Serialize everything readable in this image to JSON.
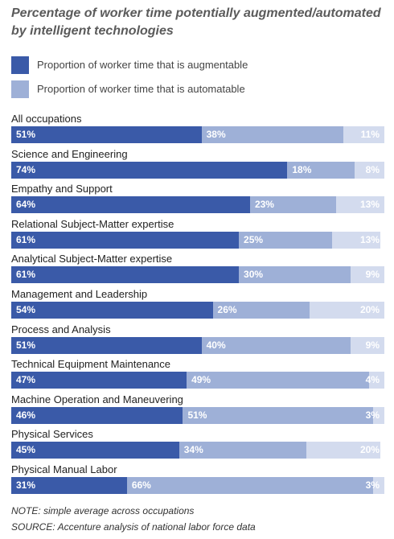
{
  "chart_data": {
    "type": "bar",
    "stacked": true,
    "orientation": "horizontal",
    "title": "Percentage of worker time potentially augmented/automated by intelligent technologies",
    "categories": [
      "All occupations",
      "Science and Engineering",
      "Empathy and Support",
      "Relational Subject-Matter expertise",
      "Analytical Subject-Matter expertise",
      "Management and Leadership",
      "Process and Analysis",
      "Technical Equipment Maintenance",
      "Machine Operation and Maneuvering",
      "Physical Services",
      "Physical Manual Labor"
    ],
    "series": [
      {
        "name": "Proportion of worker time that is augmentable",
        "color": "#3a5aa8",
        "text_color": "#ffffff",
        "values": [
          51,
          74,
          64,
          61,
          61,
          54,
          51,
          47,
          46,
          45,
          31
        ]
      },
      {
        "name": "Proportion of worker time that is automatable",
        "color": "#9eb0d7",
        "text_color": "#ffffff",
        "values": [
          38,
          18,
          23,
          25,
          30,
          26,
          40,
          49,
          51,
          34,
          66
        ]
      },
      {
        "name": "",
        "color": "#d3dbee",
        "text_color": "#ffffff",
        "values": [
          11,
          8,
          13,
          13,
          9,
          20,
          9,
          4,
          3,
          20,
          3
        ]
      }
    ],
    "value_suffix": "%",
    "xlim": [
      0,
      100
    ],
    "legend": "top-left",
    "grid": false
  },
  "legend": [
    {
      "label": "Proportion of worker time that is augmentable",
      "color": "#3a5aa8"
    },
    {
      "label": "Proportion of worker time that is automatable",
      "color": "#9eb0d7"
    }
  ],
  "notes": {
    "note": "NOTE: simple average across occupations",
    "source": "SOURCE: Accenture analysis of national labor force data"
  }
}
